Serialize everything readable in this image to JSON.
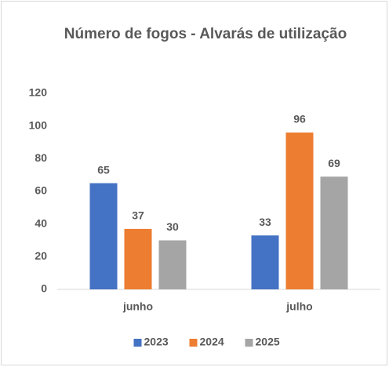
{
  "chart_data": {
    "type": "bar",
    "title": "Número de fogos - Alvarás de utilização",
    "categories": [
      "junho",
      "julho"
    ],
    "series": [
      {
        "name": "2023",
        "color": "#4472c4",
        "values": [
          65,
          33
        ]
      },
      {
        "name": "2024",
        "color": "#ed7d31",
        "values": [
          37,
          96
        ]
      },
      {
        "name": "2025",
        "color": "#a5a5a5",
        "values": [
          30,
          69
        ]
      }
    ],
    "ylim": [
      0,
      120
    ],
    "yticks": [
      0,
      20,
      40,
      60,
      80,
      100,
      120
    ],
    "grid": false,
    "legend": "bottom"
  }
}
